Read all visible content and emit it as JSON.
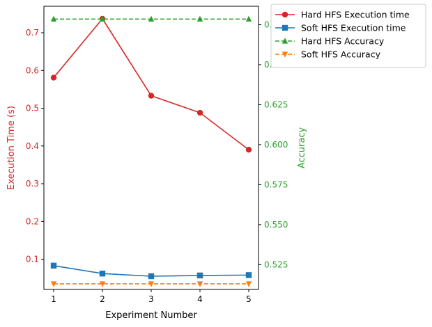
{
  "chart_data": {
    "type": "line",
    "xlabel": "Experiment Number",
    "ylabel_left": "Execution Time (s)",
    "ylabel_right": "Accuracy",
    "x": [
      1,
      2,
      3,
      4,
      5
    ],
    "xlim": [
      0.8,
      5.2
    ],
    "ylim_left": [
      0.02,
      0.77
    ],
    "ylim_right": [
      0.5095,
      0.6865
    ],
    "left_ticks": [
      "0.1",
      "0.2",
      "0.3",
      "0.4",
      "0.5",
      "0.6",
      "0.7"
    ],
    "right_ticks": [
      "0.525",
      "0.550",
      "0.575",
      "0.600",
      "0.625",
      "0.650",
      "0.675"
    ],
    "left_axis_color": "#d62728",
    "right_axis_color": "#2ca02c",
    "legend_position": "upper-right, outside plot",
    "grid": false,
    "series": [
      {
        "name": "Hard HFS Execution time",
        "axis": "left",
        "color": "#d62728",
        "marker": "circle",
        "dash": "solid",
        "values": [
          0.581,
          0.737,
          0.533,
          0.488,
          0.39
        ]
      },
      {
        "name": "Soft HFS Execution time",
        "axis": "left",
        "color": "#1f77b4",
        "marker": "square",
        "dash": "solid",
        "values": [
          0.083,
          0.062,
          0.055,
          0.057,
          0.058
        ]
      },
      {
        "name": "Hard HFS Accuracy",
        "axis": "right",
        "color": "#2ca02c",
        "marker": "triangle-up",
        "dash": "dashed",
        "values": [
          0.6785,
          0.6785,
          0.6785,
          0.6785,
          0.6785
        ]
      },
      {
        "name": "Soft HFS Accuracy",
        "axis": "right",
        "color": "#ff7f0e",
        "marker": "triangle-down",
        "dash": "dashed",
        "values": [
          0.513,
          0.513,
          0.513,
          0.513,
          0.513
        ]
      }
    ]
  }
}
